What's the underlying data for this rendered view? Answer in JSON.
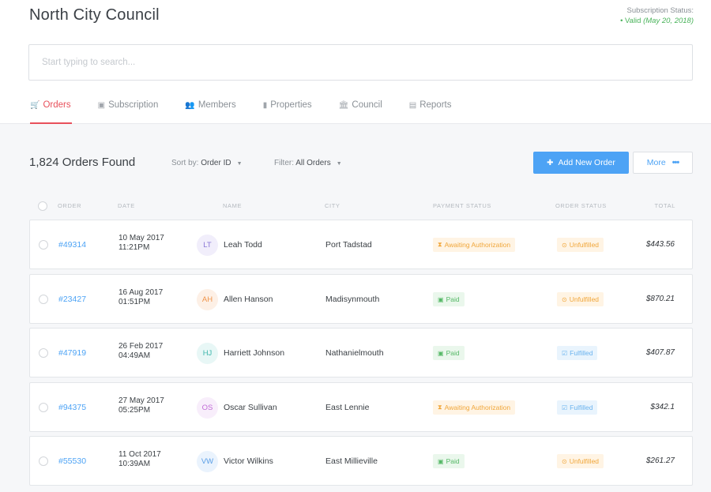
{
  "header": {
    "title": "North City Council",
    "subscription_label": "Subscription Status:",
    "subscription_value": "• Valid",
    "subscription_date": "(May 20, 2018)"
  },
  "search": {
    "placeholder": "Start typing to search..."
  },
  "tabs": [
    {
      "label": "Orders",
      "icon": "cart-icon",
      "glyph": "🛒",
      "active": true
    },
    {
      "label": "Subscription",
      "icon": "box-icon",
      "glyph": "▣",
      "active": false
    },
    {
      "label": "Members",
      "icon": "people-icon",
      "glyph": "👥",
      "active": false
    },
    {
      "label": "Properties",
      "icon": "building-icon",
      "glyph": "▮",
      "active": false
    },
    {
      "label": "Council",
      "icon": "bank-icon",
      "glyph": "🏛",
      "active": false
    },
    {
      "label": "Reports",
      "icon": "document-icon",
      "glyph": "▤",
      "active": false
    }
  ],
  "toolbar": {
    "found": "1,824 Orders Found",
    "sort_label": "Sort by:",
    "sort_value": "Order ID",
    "filter_label": "Filter:",
    "filter_value": "All Orders",
    "add_label": "Add New Order",
    "more_label": "More"
  },
  "columns": [
    "Order",
    "Date",
    "Name",
    "City",
    "Payment Status",
    "Order Status",
    "Total"
  ],
  "orders": [
    {
      "id": "#49314",
      "date": "10 May 2017",
      "time": "11:21PM",
      "initials": "LT",
      "name": "Leah Todd",
      "city": "Port Tadstad",
      "payment": "Awaiting Authorization",
      "status": "Unfulfilled",
      "total": "$443.56",
      "avatar_bg": "#f1eefb",
      "avatar_fg": "#8b78d6"
    },
    {
      "id": "#23427",
      "date": "16 Aug 2017",
      "time": "01:51PM",
      "initials": "AH",
      "name": "Allen Hanson",
      "city": "Madisynmouth",
      "payment": "Paid",
      "status": "Unfulfilled",
      "total": "$870.21",
      "avatar_bg": "#fdf0e6",
      "avatar_fg": "#f0944a"
    },
    {
      "id": "#47919",
      "date": "26 Feb 2017",
      "time": "04:49AM",
      "initials": "HJ",
      "name": "Harriett Johnson",
      "city": "Nathanielmouth",
      "payment": "Paid",
      "status": "Fulfilled",
      "total": "$407.87",
      "avatar_bg": "#e8f7f6",
      "avatar_fg": "#3fb7ad"
    },
    {
      "id": "#94375",
      "date": "27 May 2017",
      "time": "05:25PM",
      "initials": "OS",
      "name": "Oscar Sullivan",
      "city": "East Lennie",
      "payment": "Awaiting Authorization",
      "status": "Fulfilled",
      "total": "$342.1",
      "avatar_bg": "#f8eefb",
      "avatar_fg": "#c06ad6"
    },
    {
      "id": "#55530",
      "date": "11 Oct 2017",
      "time": "10:39AM",
      "initials": "VW",
      "name": "Victor Wilkins",
      "city": "East Millieville",
      "payment": "Paid",
      "status": "Unfulfilled",
      "total": "$261.27",
      "avatar_bg": "#eaf3fd",
      "avatar_fg": "#5a9ee6"
    }
  ],
  "colors": {
    "accent": "#e8505b",
    "primary": "#4da3f5",
    "valid": "#49b35a"
  }
}
